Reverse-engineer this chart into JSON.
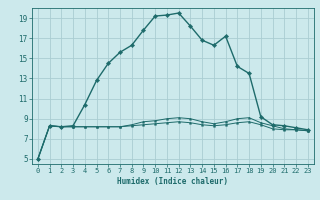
{
  "title": "",
  "xlabel": "Humidex (Indice chaleur)",
  "background_color": "#cce9ec",
  "grid_color": "#aacdd2",
  "line_color": "#1e6b6b",
  "x_data": [
    0,
    1,
    2,
    3,
    4,
    5,
    6,
    7,
    8,
    9,
    10,
    11,
    12,
    13,
    14,
    15,
    16,
    17,
    18,
    19,
    20,
    21,
    22,
    23
  ],
  "line1_y": [
    5.0,
    8.3,
    8.2,
    8.2,
    8.2,
    8.2,
    8.2,
    8.2,
    8.3,
    8.4,
    8.5,
    8.6,
    8.7,
    8.6,
    8.4,
    8.3,
    8.4,
    8.6,
    8.7,
    8.4,
    8.0,
    7.9,
    7.9,
    7.8
  ],
  "line2_y": [
    5.0,
    8.3,
    8.2,
    8.2,
    8.2,
    8.2,
    8.2,
    8.2,
    8.4,
    8.7,
    8.8,
    9.0,
    9.1,
    9.0,
    8.7,
    8.5,
    8.7,
    9.0,
    9.1,
    8.6,
    8.3,
    8.0,
    7.9,
    7.8
  ],
  "line3_y": [
    5.0,
    8.3,
    8.2,
    8.3,
    10.4,
    12.8,
    14.5,
    15.6,
    16.3,
    17.8,
    19.2,
    19.3,
    19.5,
    18.2,
    16.8,
    16.3,
    17.2,
    14.2,
    13.5,
    9.2,
    8.4,
    8.3,
    8.1,
    7.9
  ],
  "ylim": [
    4.5,
    20.0
  ],
  "xlim": [
    -0.5,
    23.5
  ],
  "yticks": [
    5,
    7,
    9,
    11,
    13,
    15,
    17,
    19
  ],
  "xticks": [
    0,
    1,
    2,
    3,
    4,
    5,
    6,
    7,
    8,
    9,
    10,
    11,
    12,
    13,
    14,
    15,
    16,
    17,
    18,
    19,
    20,
    21,
    22,
    23
  ]
}
